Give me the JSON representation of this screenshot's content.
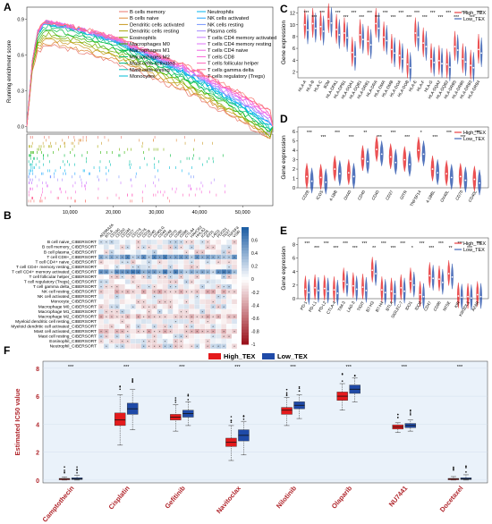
{
  "panels": {
    "a": {
      "letter": "A",
      "ylabel": "Running enrichment score",
      "yticks": [
        "0.9",
        "0.6",
        "0.3",
        "0.0"
      ],
      "xticks": [
        "10,000",
        "20,000",
        "30,000",
        "40,000",
        "50,000"
      ],
      "legend_left": [
        "B cells memory",
        "B cells naive",
        "Dendritic cells activated",
        "Dendritic cells resting",
        "Eosinophils",
        "Macrophages M0",
        "Macrophages M1",
        "Macrophages M2",
        "Mast cells activated",
        "Mast cells resting",
        "Monocytes"
      ],
      "legend_right": [
        "Neutrophils",
        "NK cells activated",
        "NK cells resting",
        "Plasma cells",
        "T cells CD4 memory activated",
        "T cells CD4 memory resting",
        "T cells CD4 naive",
        "T cells CD8",
        "T cells follicular helper",
        "T cells gamma delta",
        "T cells regulatory (Tregs)"
      ],
      "colors_left": [
        "#e8766d",
        "#df8a3a",
        "#c99a22",
        "#a8a500",
        "#79ad00",
        "#2db400",
        "#00ba38",
        "#00bd6e",
        "#00bf96",
        "#00c0b8",
        "#00bcd6"
      ],
      "colors_right": [
        "#00b4ef",
        "#1da6ff",
        "#7595ff",
        "#a58aff",
        "#c77cff",
        "#df70f8",
        "#ef67e5",
        "#fb61d7",
        "#ff62bc",
        "#ff6a98",
        "#f8766d"
      ]
    },
    "b": {
      "letter": "B",
      "rows": [
        "B cell naive_CIBERSORT",
        "B cell memory_CIBERSORT",
        "B cell plasma_CIBERSORT",
        "T cell CD8+_CIBERSORT",
        "T cell CD4+ naive_CIBERSORT",
        "T cell CD4+ memory resting_CIBERSORT",
        "T cell CD4+ memory activated_CIBERSORT",
        "T cell follicular helper_CIBERSORT",
        "T cell regulatory (Tregs)_CIBERSORT",
        "T cell gamma delta_CIBERSORT",
        "NK cell resting_CIBERSORT",
        "NK cell activated_CIBERSORT",
        "Monocyte_CIBERSORT",
        "Macrophage M0_CIBERSORT",
        "Macrophage M1_CIBERSORT",
        "Macrophage M2_CIBERSORT",
        "Myeloid dendritic cell resting_CIBERSORT",
        "Myeloid dendritic cell activated_CIBERSORT",
        "Mast cell activated_CIBERSORT",
        "Mast cell resting_CIBERSORT",
        "Eosinophil_CIBERSORT",
        "Neutrophil_CIBERSORT"
      ],
      "cols": [
        "ADORA2A",
        "BTLA",
        "CD160",
        "CD200",
        "CD244",
        "CD27",
        "CD274",
        "CD276",
        "CD28",
        "CD40",
        "CD40LG",
        "CD44",
        "CD48",
        "CD70",
        "CD80",
        "CD86",
        "CTLA4",
        "HAVCR2",
        "HHLA2",
        "ICOS",
        "IDO1",
        "LAG3",
        "PDCD1",
        "TIGIT",
        "TNFSF4",
        "VSIR"
      ],
      "scale_ticks": [
        "0.6",
        "0.4",
        "0.2",
        "0",
        "-0.2",
        "-0.4",
        "-0.6",
        "-0.8",
        "-1"
      ]
    },
    "c": {
      "letter": "C",
      "ylabel": "Gene expression",
      "yticks": [
        "2",
        "4",
        "6",
        "8",
        "10",
        "12"
      ],
      "genes": [
        "HLA-A",
        "HLA-B",
        "HLA-C",
        "B2M",
        "HLA-DPA1",
        "HLA-DPB1",
        "HLA-DQA1",
        "HLA-DQB1",
        "HLA-DRB1",
        "HLA-DRA",
        "HLA-DMA",
        "HLA-DMB",
        "HLA-DOA",
        "HLA-DOB",
        "HLA-E",
        "HLA-F",
        "HLA-G",
        "HLA-DQA2",
        "HLA-DQB2",
        "HLA-DRB5",
        "HLA-DRB6",
        "HLA-DRB3",
        "HLA-DRB4"
      ],
      "sig": [
        "***",
        "***",
        "***",
        "",
        "***",
        "***",
        "***",
        "***",
        "***",
        "***",
        "***",
        "***",
        "***",
        "***",
        "***",
        "***",
        "***",
        "***",
        "***",
        "***",
        "***",
        "***",
        "***"
      ],
      "legend": [
        "High_TEX",
        "Low_TEX"
      ]
    },
    "d": {
      "letter": "D",
      "ylabel": "Gene expression",
      "yticks": [
        "0",
        "1",
        "2",
        "3",
        "4",
        "5",
        "6"
      ],
      "genes": [
        "CD28",
        "ICOS",
        "4-1BB",
        "OX40",
        "CD40",
        "CD40",
        "CD27",
        "GITR",
        "TNFSF14",
        "4-1BBL",
        "OX40L",
        "CD70",
        "CD40L"
      ],
      "sig": [
        "***",
        "***",
        "***",
        "***",
        "**",
        "***",
        "***",
        "***",
        "*",
        "***",
        "***",
        "***",
        "***"
      ],
      "legend": [
        "High_TEX",
        "Low_TEX"
      ]
    },
    "e": {
      "letter": "E",
      "ylabel": "Gene expression",
      "yticks": [
        "0",
        "2",
        "4",
        "6",
        "8"
      ],
      "genes": [
        "PD-1",
        "PD-L1",
        "PD-L2",
        "CTLA-4",
        "TIM-3",
        "LAG-3",
        "TIGIT",
        "B7-H3",
        "B7-H4",
        "BTLA",
        "SIGLEC-7",
        "IDO1",
        "IDO2",
        "CD47",
        "CD96",
        "NT5E",
        "KIR",
        "KIR3DL1",
        "A2AR"
      ],
      "sig": [
        "***",
        "***",
        "***",
        "***",
        "***",
        "***",
        "***",
        "**",
        "***",
        "***",
        "***",
        "*",
        "***",
        "***",
        "***",
        "**",
        "***",
        "***",
        "***"
      ],
      "legend": [
        "High_TEX",
        "Low_TEX"
      ]
    },
    "f": {
      "letter": "F",
      "ylabel": "Estimated IC50 value",
      "yticks": [
        "0",
        "2",
        "4",
        "6",
        "8"
      ],
      "legend": [
        "High_TEX",
        "Low_TEX"
      ],
      "drugs": [
        "Camptothecin",
        "Cisplatin",
        "Gefitinib",
        "Navitoclax",
        "Nilotinib",
        "Olaparib",
        "NU7441",
        "Docetaxel"
      ],
      "sig": [
        "***",
        "***",
        "***",
        "***",
        "***",
        "***",
        "***",
        "***"
      ]
    }
  },
  "chart_data": [
    {
      "type": "line",
      "title": "",
      "ylabel": "Running enrichment score",
      "xlabel": "",
      "xlim": [
        0,
        57000
      ],
      "ylim": [
        -0.05,
        1.0
      ],
      "series_shape": [
        [
          0,
          0.0
        ],
        [
          1200,
          0.55
        ],
        [
          2500,
          0.82
        ],
        [
          4500,
          0.9
        ],
        [
          10000,
          0.86
        ],
        [
          20000,
          0.75
        ],
        [
          30000,
          0.58
        ],
        [
          40000,
          0.4
        ],
        [
          50000,
          0.18
        ],
        [
          57000,
          0.0
        ]
      ]
    },
    {
      "type": "heatmap",
      "title": "",
      "scale": [
        -1,
        0.8
      ]
    },
    {
      "type": "violin",
      "title": "",
      "ylabel": "Gene expression",
      "ylim": [
        1,
        13
      ],
      "series": [
        {
          "name": "High_TEX",
          "values": [
            10,
            10.2,
            9.7,
            11,
            9.2,
            8.6,
            5.3,
            8.3,
            7.2,
            10.2,
            7.9,
            5.8,
            4.8,
            3.3,
            8.6,
            6.9,
            4.2,
            3.9,
            3.3,
            6.3,
            4.2,
            3.1,
            5.8
          ]
        },
        {
          "name": "Low_TEX",
          "values": [
            9.1,
            9.4,
            8.9,
            10.3,
            8.3,
            7.8,
            4.6,
            7.5,
            6.6,
            9.4,
            7.3,
            5.2,
            4.2,
            2.7,
            7.9,
            6.3,
            3.6,
            3.4,
            2.8,
            5.7,
            3.7,
            2.7,
            5.2
          ]
        }
      ]
    },
    {
      "type": "violin",
      "title": "",
      "ylabel": "Gene expression",
      "ylim": [
        0,
        6.5
      ],
      "series": [
        {
          "name": "High_TEX",
          "values": [
            1.2,
            1.1,
            2.0,
            1.6,
            3.1,
            4.1,
            3.3,
            3.0,
            4.0,
            2.0,
            1.5,
            1.2,
            0.9
          ]
        },
        {
          "name": "Low_TEX",
          "values": [
            0.7,
            0.6,
            1.5,
            1.2,
            2.8,
            3.6,
            2.7,
            2.5,
            3.6,
            1.6,
            1.1,
            0.8,
            0.5
          ]
        }
      ]
    },
    {
      "type": "violin",
      "title": "",
      "ylabel": "Gene expression",
      "ylim": [
        0,
        9
      ],
      "series": [
        {
          "name": "High_TEX",
          "values": [
            1.4,
            1.6,
            1.5,
            1.3,
            2.6,
            1.9,
            1.7,
            4.2,
            1.3,
            1.1,
            1.6,
            2.6,
            0.6,
            3.4,
            2.9,
            3.7,
            0.4,
            0.3,
            0.6
          ]
        },
        {
          "name": "Low_TEX",
          "values": [
            0.9,
            1.2,
            1.1,
            0.8,
            2.1,
            1.4,
            1.2,
            3.7,
            0.9,
            0.7,
            1.1,
            2.0,
            0.3,
            3.0,
            2.4,
            3.2,
            0.2,
            0.1,
            0.3
          ]
        }
      ]
    },
    {
      "type": "box",
      "title": "",
      "ylabel": "Estimated IC50 value",
      "xlabel": "",
      "ylim": [
        -0.2,
        8.5
      ],
      "categories": [
        "Camptothecin",
        "Cisplatin",
        "Gefitinib",
        "Navitoclax",
        "Nilotinib",
        "Olaparib",
        "NU7441",
        "Docetaxel"
      ],
      "series": [
        {
          "name": "High_TEX",
          "color": "#e41a1c",
          "medians": [
            0.07,
            4.3,
            4.5,
            2.7,
            5.0,
            6.0,
            3.8,
            0.07
          ],
          "q1": [
            0.02,
            3.9,
            4.3,
            2.4,
            4.7,
            5.7,
            3.65,
            0.02
          ],
          "q3": [
            0.12,
            4.8,
            4.7,
            3.0,
            5.2,
            6.3,
            3.95,
            0.12
          ],
          "whisker_low": [
            0.0,
            2.5,
            3.5,
            1.4,
            3.9,
            5.0,
            3.4,
            0.0
          ],
          "whisker_high": [
            0.22,
            6.1,
            5.4,
            3.9,
            5.9,
            6.9,
            4.1,
            0.25
          ]
        },
        {
          "name": "Low_TEX",
          "color": "#1f4aa8",
          "medians": [
            0.09,
            5.1,
            4.75,
            3.2,
            5.35,
            6.5,
            3.9,
            0.09
          ],
          "q1": [
            0.04,
            4.7,
            4.5,
            2.8,
            5.1,
            6.2,
            3.75,
            0.04
          ],
          "q3": [
            0.16,
            5.5,
            5.0,
            3.6,
            5.6,
            6.8,
            4.05,
            0.16
          ],
          "whisker_low": [
            0.0,
            3.6,
            3.9,
            1.8,
            4.4,
            5.6,
            3.5,
            0.0
          ],
          "whisker_high": [
            0.35,
            6.5,
            5.6,
            4.2,
            6.1,
            7.3,
            4.3,
            0.38
          ]
        }
      ]
    }
  ]
}
